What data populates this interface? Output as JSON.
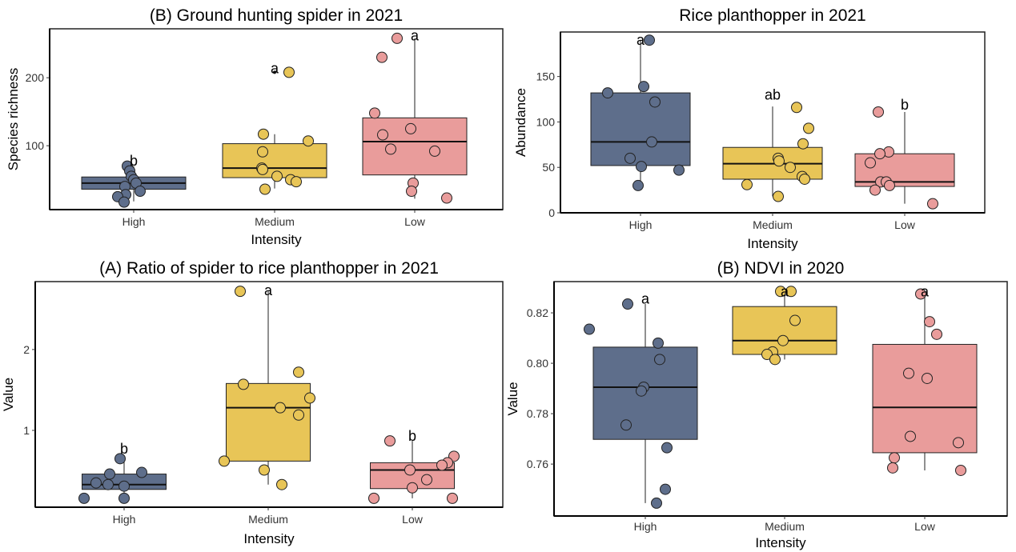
{
  "colors": {
    "High": "#5e6e8b",
    "Medium": "#e8c557",
    "Low": "#e99c9b"
  },
  "chart_data": [
    {
      "type": "box",
      "title": "(B) Ground hunting spider in 2021",
      "xlabel": "Intensity",
      "ylabel": "Species richness",
      "categories": [
        "High",
        "Medium",
        "Low"
      ],
      "ylim": [
        6,
        272
      ],
      "yticks": [
        100,
        200
      ],
      "ytick_labels": [
        "100",
        "200"
      ],
      "boxes": [
        {
          "q1": 36,
          "median": 45,
          "q3": 54,
          "whisker_low": 18,
          "whisker_high": 70,
          "outliers": [],
          "points": [
            70,
            63,
            55,
            50,
            45,
            40,
            33,
            28,
            25,
            17
          ],
          "letter": "b",
          "letter_y": 78
        },
        {
          "q1": 53,
          "median": 67,
          "q3": 103,
          "whisker_low": 37,
          "whisker_high": 117,
          "outliers": [
            208
          ],
          "points": [
            117,
            91,
            67,
            65,
            107,
            55,
            50,
            47,
            36,
            208
          ],
          "letter": "a",
          "letter_y": 214
        },
        {
          "q1": 57,
          "median": 106,
          "q3": 141,
          "whisker_low": 22,
          "whisker_high": 258,
          "outliers": [],
          "points": [
            258,
            230,
            148,
            116,
            125,
            95,
            92,
            45,
            33,
            23
          ],
          "letter": "a",
          "letter_y": 262
        }
      ]
    },
    {
      "type": "box",
      "title": "Rice planthopper in 2021",
      "xlabel": "Intensity",
      "ylabel": "Abundance",
      "categories": [
        "High",
        "Medium",
        "Low"
      ],
      "ylim": [
        0,
        199
      ],
      "yticks": [
        0,
        50,
        100,
        150
      ],
      "ytick_labels": [
        "0",
        "50",
        "100",
        "150"
      ],
      "boxes": [
        {
          "q1": 52,
          "median": 78,
          "q3": 132,
          "whisker_low": 30,
          "whisker_high": 190,
          "outliers": [],
          "points": [
            190,
            139,
            132,
            122,
            78,
            60,
            47,
            51,
            30
          ],
          "letter": "a",
          "letter_y": 190
        },
        {
          "q1": 37,
          "median": 54,
          "q3": 72,
          "whisker_low": 18,
          "whisker_high": 117,
          "outliers": [],
          "points": [
            116,
            93,
            76,
            60,
            57,
            50,
            40,
            37,
            31,
            18
          ],
          "letter": "ab",
          "letter_y": 130
        },
        {
          "q1": 29,
          "median": 34,
          "q3": 65,
          "whisker_low": 10,
          "whisker_high": 111,
          "outliers": [],
          "points": [
            111,
            67,
            65,
            55,
            34,
            34,
            30,
            25,
            10
          ],
          "letter": "b",
          "letter_y": 119
        }
      ]
    },
    {
      "type": "box",
      "title": "(A) Ratio of spider to rice planthopper in 2021",
      "xlabel": "Intensity",
      "ylabel": "Value",
      "categories": [
        "High",
        "Medium",
        "Low"
      ],
      "ylim": [
        0.05,
        2.84
      ],
      "yticks": [
        1,
        2
      ],
      "ytick_labels": [
        "1",
        "2"
      ],
      "boxes": [
        {
          "q1": 0.27,
          "median": 0.33,
          "q3": 0.46,
          "whisker_low": 0.15,
          "whisker_high": 0.66,
          "outliers": [],
          "points": [
            0.65,
            0.48,
            0.46,
            0.35,
            0.33,
            0.31,
            0.16,
            0.16
          ],
          "letter": "b",
          "letter_y": 0.77
        },
        {
          "q1": 0.62,
          "median": 1.28,
          "q3": 1.58,
          "whisker_low": 0.33,
          "whisker_high": 2.72,
          "outliers": [],
          "points": [
            2.72,
            1.72,
            1.57,
            1.4,
            1.28,
            1.19,
            0.62,
            0.51,
            0.33
          ],
          "letter": "a",
          "letter_y": 2.73
        },
        {
          "q1": 0.28,
          "median": 0.51,
          "q3": 0.6,
          "whisker_low": 0.16,
          "whisker_high": 0.87,
          "outliers": [],
          "points": [
            0.87,
            0.68,
            0.6,
            0.57,
            0.51,
            0.39,
            0.29,
            0.16,
            0.16
          ],
          "letter": "b",
          "letter_y": 0.93
        }
      ]
    },
    {
      "type": "box",
      "title": "(B) NDVI in 2020",
      "xlabel": "Intensity",
      "ylabel": "Value",
      "categories": [
        "High",
        "Medium",
        "Low"
      ],
      "ylim": [
        0.7394,
        0.8324
      ],
      "yticks": [
        0.76,
        0.78,
        0.8,
        0.82
      ],
      "ytick_labels": [
        "0.76",
        "0.78",
        "0.80",
        "0.82"
      ],
      "boxes": [
        {
          "q1": 0.7698,
          "median": 0.7905,
          "q3": 0.8064,
          "whisker_low": 0.7445,
          "whisker_high": 0.8235,
          "outliers": [],
          "points": [
            0.8235,
            0.8135,
            0.808,
            0.8015,
            0.7905,
            0.789,
            0.7755,
            0.7665,
            0.75,
            0.7445
          ],
          "letter": "a",
          "letter_y": 0.8255
        },
        {
          "q1": 0.8035,
          "median": 0.809,
          "q3": 0.8225,
          "whisker_low": 0.8015,
          "whisker_high": 0.8285,
          "outliers": [],
          "points": [
            0.8285,
            0.8285,
            0.817,
            0.809,
            0.8045,
            0.8035,
            0.8015
          ],
          "letter": "a",
          "letter_y": 0.8285
        },
        {
          "q1": 0.7645,
          "median": 0.7825,
          "q3": 0.8075,
          "whisker_low": 0.7575,
          "whisker_high": 0.8285,
          "outliers": [],
          "points": [
            0.8275,
            0.8165,
            0.8115,
            0.796,
            0.794,
            0.771,
            0.7685,
            0.7625,
            0.7585,
            0.7575
          ],
          "letter": "a",
          "letter_y": 0.8285
        }
      ]
    }
  ]
}
